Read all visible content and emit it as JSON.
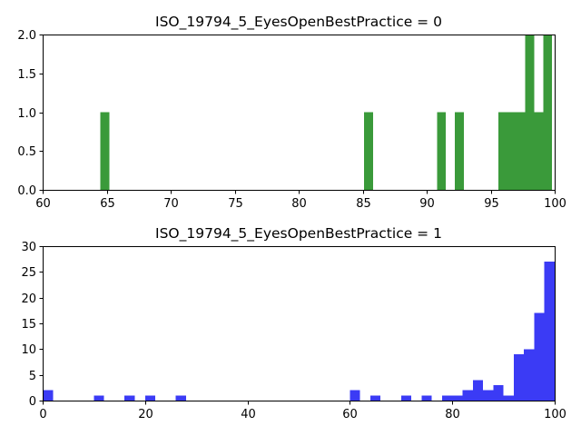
{
  "chart_data": [
    {
      "type": "bar",
      "title": "ISO_19794_5_EyesOpenBestPractice = 0",
      "xlabel": "",
      "ylabel": "",
      "xlim": [
        60,
        100
      ],
      "ylim": [
        0,
        2
      ],
      "xticks": [
        60,
        65,
        70,
        75,
        80,
        85,
        90,
        95,
        100
      ],
      "xtick_labels": [
        "60",
        "65",
        "70",
        "75",
        "80",
        "85",
        "90",
        "95",
        "100"
      ],
      "yticks": [
        0,
        0.5,
        1,
        1.5,
        2
      ],
      "ytick_labels": [
        "0.0",
        "0.5",
        "1.0",
        "1.5",
        "2.0"
      ],
      "color": "#3a9a3a",
      "bin_width": 0.7,
      "bins": [
        {
          "x": 64.5,
          "value": 1
        },
        {
          "x": 85.1,
          "value": 1
        },
        {
          "x": 90.8,
          "value": 1
        },
        {
          "x": 92.2,
          "value": 1
        },
        {
          "x": 95.6,
          "value": 1
        },
        {
          "x": 96.3,
          "value": 1
        },
        {
          "x": 97.0,
          "value": 1
        },
        {
          "x": 97.7,
          "value": 2
        },
        {
          "x": 98.4,
          "value": 1
        },
        {
          "x": 99.1,
          "value": 2
        }
      ]
    },
    {
      "type": "bar",
      "title": "ISO_19794_5_EyesOpenBestPractice = 1",
      "xlabel": "",
      "ylabel": "",
      "xlim": [
        0,
        100
      ],
      "ylim": [
        0,
        30
      ],
      "xticks": [
        0,
        20,
        40,
        60,
        80,
        100
      ],
      "xtick_labels": [
        "0",
        "20",
        "40",
        "60",
        "80",
        "100"
      ],
      "yticks": [
        0,
        5,
        10,
        15,
        20,
        25,
        30
      ],
      "ytick_labels": [
        "0",
        "5",
        "10",
        "15",
        "20",
        "25",
        "30"
      ],
      "color": "#3b3bf5",
      "bin_width": 2,
      "bins": [
        {
          "x": 0,
          "value": 2
        },
        {
          "x": 10,
          "value": 1
        },
        {
          "x": 16,
          "value": 1
        },
        {
          "x": 20,
          "value": 1
        },
        {
          "x": 26,
          "value": 1
        },
        {
          "x": 60,
          "value": 2
        },
        {
          "x": 64,
          "value": 1
        },
        {
          "x": 70,
          "value": 1
        },
        {
          "x": 74,
          "value": 1
        },
        {
          "x": 78,
          "value": 1
        },
        {
          "x": 80,
          "value": 1
        },
        {
          "x": 82,
          "value": 2
        },
        {
          "x": 84,
          "value": 4
        },
        {
          "x": 86,
          "value": 2
        },
        {
          "x": 88,
          "value": 3
        },
        {
          "x": 90,
          "value": 1
        },
        {
          "x": 92,
          "value": 9
        },
        {
          "x": 94,
          "value": 10
        },
        {
          "x": 96,
          "value": 17
        },
        {
          "x": 98,
          "value": 27
        }
      ]
    }
  ]
}
